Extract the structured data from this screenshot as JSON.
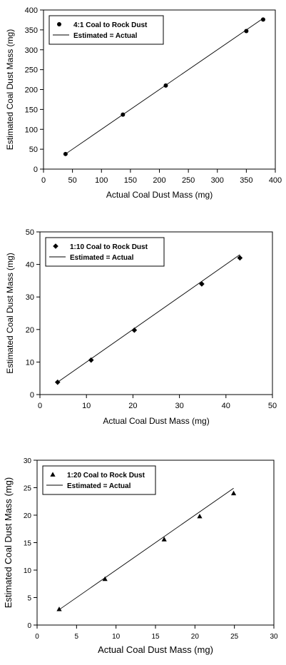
{
  "chart_data": [
    {
      "type": "scatter",
      "xlabel": "Actual Coal Dust Mass (mg)",
      "ylabel": "Estimated Coal Dust Mass (mg)",
      "xlim": [
        0,
        400
      ],
      "ylim": [
        0,
        400
      ],
      "xticks": [
        0,
        50,
        100,
        150,
        200,
        250,
        300,
        350,
        400
      ],
      "yticks": [
        0,
        50,
        100,
        150,
        200,
        250,
        300,
        350,
        400
      ],
      "grid": false,
      "legend": "top-left",
      "series": [
        {
          "name": "4:1 Coal to Rock Dust",
          "kind": "scatter",
          "marker": "circle",
          "x": [
            38,
            137,
            211,
            350,
            379
          ],
          "y": [
            38,
            137,
            210,
            347,
            376
          ]
        },
        {
          "name": "Estimated = Actual",
          "kind": "line",
          "x": [
            38,
            379
          ],
          "y": [
            38,
            379
          ]
        }
      ]
    },
    {
      "type": "scatter",
      "xlabel": "Actual Coal Dust Mass (mg)",
      "ylabel": "Estimated Coal Dust Mass (mg)",
      "xlim": [
        0,
        50
      ],
      "ylim": [
        0,
        50
      ],
      "xticks": [
        0,
        10,
        20,
        30,
        40,
        50
      ],
      "yticks": [
        0,
        10,
        20,
        30,
        40,
        50
      ],
      "grid": false,
      "legend": "top-left",
      "series": [
        {
          "name": "1:10 Coal to Rock Dust",
          "kind": "scatter",
          "marker": "diamond",
          "x": [
            3.8,
            11,
            20.3,
            34.8,
            43
          ],
          "y": [
            3.8,
            10.6,
            19.8,
            34,
            42
          ]
        },
        {
          "name": "Estimated = Actual",
          "kind": "line",
          "x": [
            3.8,
            43
          ],
          "y": [
            3.8,
            43
          ]
        }
      ]
    },
    {
      "type": "scatter",
      "xlabel": "Actual Coal Dust Mass (mg)",
      "ylabel": "Estimated Coal Dust Mass (mg)",
      "xlim": [
        0,
        30
      ],
      "ylim": [
        0,
        30
      ],
      "xticks": [
        0,
        5,
        10,
        15,
        20,
        25,
        30
      ],
      "yticks": [
        0,
        5,
        10,
        15,
        20,
        25,
        30
      ],
      "grid": false,
      "legend": "top-left",
      "series": [
        {
          "name": "1:20 Coal to Rock Dust",
          "kind": "scatter",
          "marker": "triangle",
          "x": [
            2.8,
            8.6,
            16.1,
            20.6,
            24.9
          ],
          "y": [
            2.9,
            8.4,
            15.6,
            19.8,
            24
          ]
        },
        {
          "name": "Estimated = Actual",
          "kind": "line",
          "x": [
            2.8,
            24.9
          ],
          "y": [
            2.8,
            24.9
          ]
        }
      ]
    }
  ]
}
